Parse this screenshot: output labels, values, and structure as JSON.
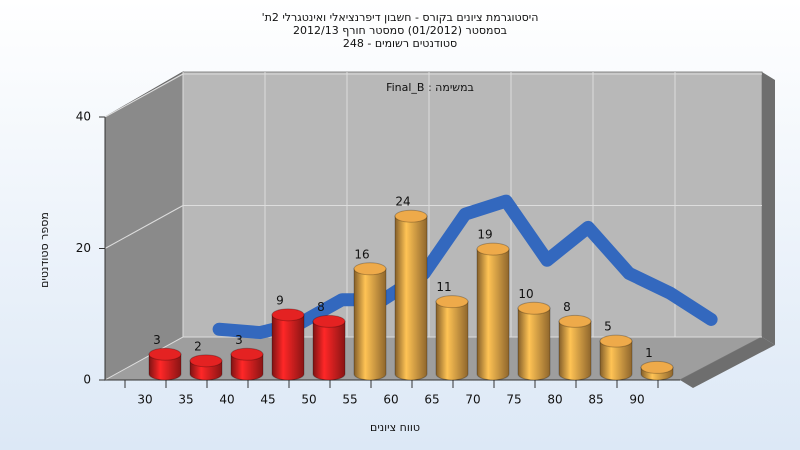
{
  "chart_data": {
    "type": "bar",
    "title": "היסטוגרמת ציונים בקורס - חשבון דיפרנציאלי ואינטגרלי 2ת'",
    "subtitle": "בסמסטר  (01/2012)  סמסטר חורף 2012/13",
    "subtitle2": "סטודנטים רשומים - 248",
    "annotation": "במשימה : Final_B",
    "x_label": "טווח ציונים",
    "y_label": "מספר סטודנטים",
    "categories": [
      "30",
      "35",
      "40",
      "45",
      "50",
      "55",
      "60",
      "65",
      "70",
      "75",
      "80",
      "85",
      "90"
    ],
    "values": [
      3,
      2,
      3,
      9,
      8,
      16,
      24,
      11,
      19,
      10,
      8,
      5,
      1
    ],
    "colors": [
      "#e42222",
      "#e42222",
      "#e42222",
      "#e42222",
      "#e42222",
      "#eeaa4a",
      "#eeaa4a",
      "#eeaa4a",
      "#eeaa4a",
      "#eeaa4a",
      "#eeaa4a",
      "#eeaa4a",
      "#eeaa4a"
    ],
    "curve": {
      "color": "#3368be",
      "values": [
        1.5,
        1,
        2.5,
        6,
        6,
        10,
        19,
        21,
        12,
        17,
        10,
        7,
        3
      ]
    },
    "ylim": [
      0,
      40
    ],
    "yticks": [
      0,
      20,
      40
    ],
    "grid": true
  }
}
